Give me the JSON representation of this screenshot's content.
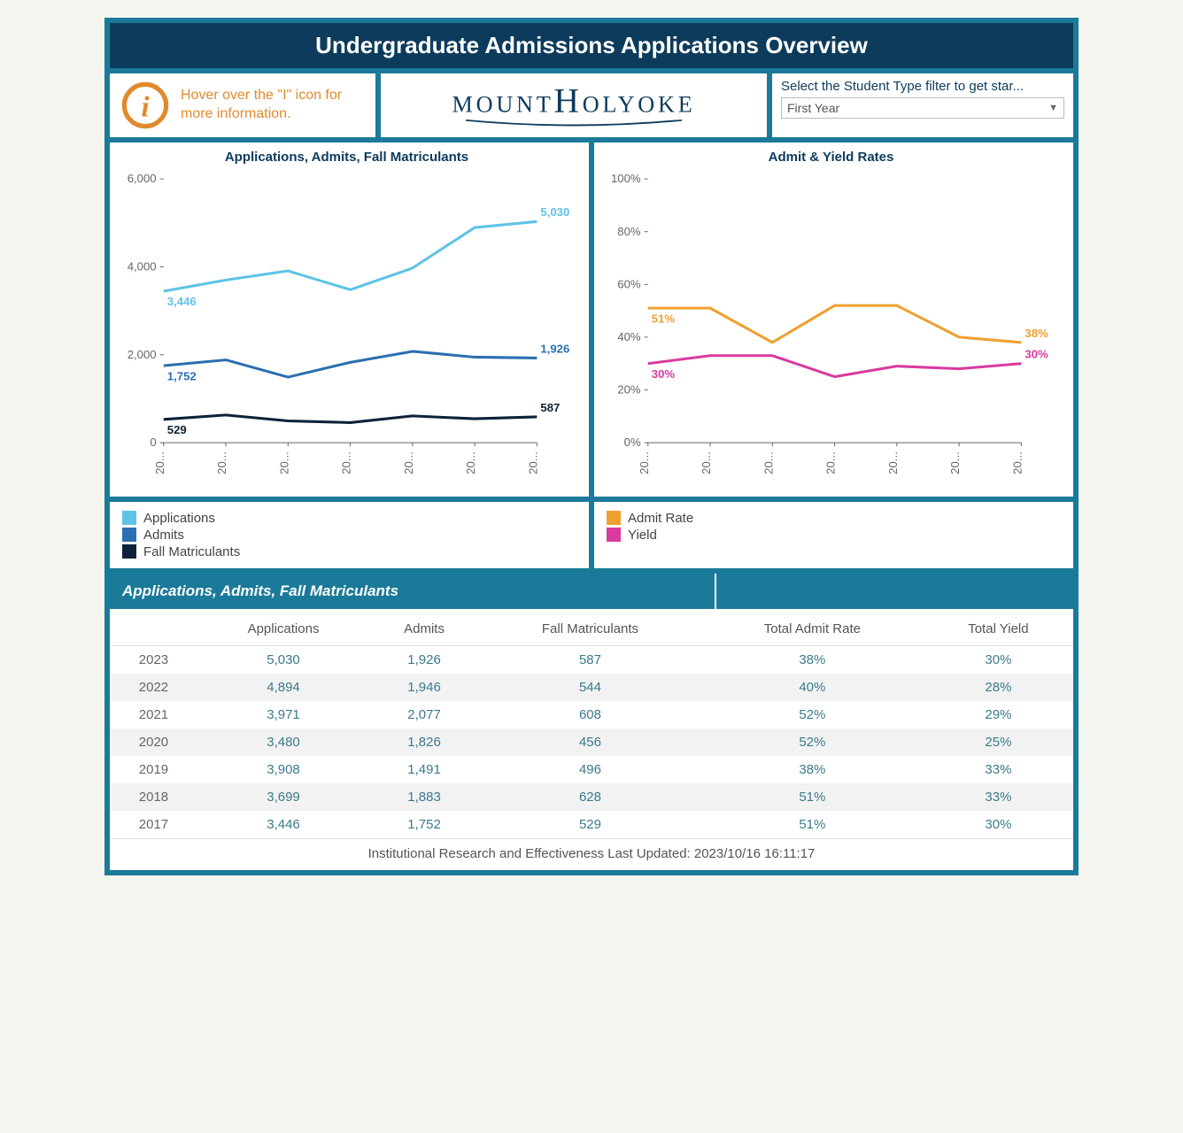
{
  "page_title": "Undergraduate Admissions Applications Overview",
  "info": {
    "text": "Hover over the \"I\" icon for more information.",
    "icon_stroke": "#e08a2c",
    "text_color": "#e08a2c"
  },
  "logo_text": "MOUNTHOLYOKE",
  "filter": {
    "label": "Select the Student Type filter to get star...",
    "selected": "First Year"
  },
  "chart1": {
    "title": "Applications, Admits, Fall Matriculants",
    "type": "line",
    "x_labels": [
      "20...",
      "20...",
      "20...",
      "20...",
      "20...",
      "20...",
      "20..."
    ],
    "ylim": [
      0,
      6000
    ],
    "yticks": [
      0,
      2000,
      4000,
      6000
    ],
    "ytick_labels": [
      "0",
      "2,000",
      "4,000",
      "6,000"
    ],
    "series": [
      {
        "name": "Applications",
        "color": "#5ec3e6",
        "values": [
          3446,
          3699,
          3908,
          3480,
          3971,
          4894,
          5030
        ],
        "start_label": "3,446",
        "end_label": "5,030"
      },
      {
        "name": "Admits",
        "color": "#2b6fb0",
        "values": [
          1752,
          1883,
          1491,
          1826,
          2077,
          1946,
          1926
        ],
        "start_label": "1,752",
        "end_label": "1,926"
      },
      {
        "name": "Fall Matriculants",
        "color": "#0d2238",
        "values": [
          529,
          628,
          496,
          456,
          608,
          544,
          587
        ],
        "start_label": "529",
        "end_label": "587"
      }
    ],
    "line_width": 3,
    "label_fontsize": 13,
    "axis_color": "#666666",
    "background": "#ffffff"
  },
  "chart2": {
    "title": "Admit & Yield Rates",
    "type": "line",
    "x_labels": [
      "20...",
      "20...",
      "20...",
      "20...",
      "20...",
      "20...",
      "20..."
    ],
    "ylim": [
      0,
      100
    ],
    "yticks": [
      0,
      20,
      40,
      60,
      80,
      100
    ],
    "ytick_labels": [
      "0%",
      "20%",
      "40%",
      "60%",
      "80%",
      "100%"
    ],
    "series": [
      {
        "name": "Admit Rate",
        "color": "#f0a030",
        "values": [
          51,
          51,
          38,
          52,
          52,
          40,
          38
        ],
        "start_label": "51%",
        "end_label": "38%"
      },
      {
        "name": "Yield",
        "color": "#d93aa0",
        "values": [
          30,
          33,
          33,
          25,
          29,
          28,
          30
        ],
        "start_label": "30%",
        "end_label": "30%"
      }
    ],
    "line_width": 3,
    "label_fontsize": 13,
    "axis_color": "#666666",
    "background": "#ffffff"
  },
  "legend1": {
    "items": [
      {
        "label": "Applications",
        "color": "#5ec3e6"
      },
      {
        "label": "Admits",
        "color": "#2b6fb0"
      },
      {
        "label": "Fall Matriculants",
        "color": "#0d2238"
      }
    ]
  },
  "legend2": {
    "items": [
      {
        "label": "Admit Rate",
        "color": "#f0a030"
      },
      {
        "label": "Yield",
        "color": "#d93aa0"
      }
    ]
  },
  "table": {
    "section_title": "Applications, Admits, Fall Matriculants",
    "columns": [
      "",
      "Applications",
      "Admits",
      "Fall Matriculants",
      "Total Admit Rate",
      "Total Yield"
    ],
    "rows": [
      [
        "2023",
        "5,030",
        "1,926",
        "587",
        "38%",
        "30%"
      ],
      [
        "2022",
        "4,894",
        "1,946",
        "544",
        "40%",
        "28%"
      ],
      [
        "2021",
        "3,971",
        "2,077",
        "608",
        "52%",
        "29%"
      ],
      [
        "2020",
        "3,480",
        "1,826",
        "456",
        "52%",
        "25%"
      ],
      [
        "2019",
        "3,908",
        "1,491",
        "496",
        "38%",
        "33%"
      ],
      [
        "2018",
        "3,699",
        "1,883",
        "628",
        "51%",
        "33%"
      ],
      [
        "2017",
        "3,446",
        "1,752",
        "529",
        "51%",
        "30%"
      ]
    ],
    "header_color": "#555555",
    "value_color": "#3a7a8c",
    "even_row_bg": "#f2f2f2"
  },
  "footer": "Institutional Research and Effectiveness Last Updated: 2023/10/16 16:11:17",
  "colors": {
    "frame_bg": "#1b7a99",
    "title_bg": "#0d3b5c",
    "panel_bg": "#ffffff"
  }
}
